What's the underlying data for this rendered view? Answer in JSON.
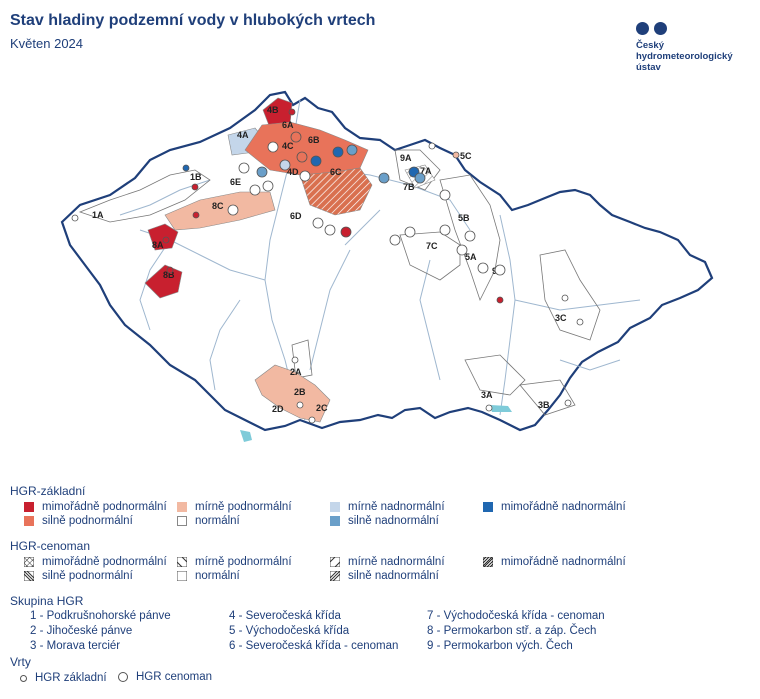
{
  "header": {
    "title": "Stav hladiny podzemní vody v hlubokých vrtech",
    "subtitle": "Květen 2024"
  },
  "logo": {
    "line1": "Český",
    "line2": "hydrometeorologický",
    "line3": "ústav"
  },
  "colors": {
    "border": "#1f3f7a",
    "river": "#9fb7cf",
    "lake": "#7ecbd9",
    "mimoradne_podnormalni": "#c8202f",
    "silne_podnormalni": "#e8735a",
    "mirne_podnormalni": "#f2b9a2",
    "normalni": "#ffffff",
    "mirne_nadnormalni": "#c4d6ea",
    "silne_nadnormalni": "#6a9fc9",
    "mimoradne_nadnormalni": "#2067b0"
  },
  "map": {
    "region_labels": [
      "1A",
      "1B",
      "2A",
      "2B",
      "2C",
      "2D",
      "3A",
      "3B",
      "3C",
      "4A",
      "4B",
      "4C",
      "4D",
      "5A",
      "5B",
      "5C",
      "6A",
      "6B",
      "6C",
      "6D",
      "6E",
      "7A",
      "7B",
      "7C",
      "8A",
      "8B",
      "8C",
      "9A",
      "9B"
    ]
  },
  "legend": {
    "zakladni_title": "HGR-základní",
    "zakladni": [
      {
        "label": "mimořádně podnormální",
        "color": "#c8202f"
      },
      {
        "label": "silně podnormální",
        "color": "#e8735a"
      },
      {
        "label": "mírně podnormální",
        "color": "#f2b9a2"
      },
      {
        "label": "normální",
        "color": "#ffffff"
      },
      {
        "label": "mírně nadnormální",
        "color": "#c4d6ea"
      },
      {
        "label": "silně nadnormální",
        "color": "#6a9fc9"
      },
      {
        "label": "mimořádně nadnormální",
        "color": "#2067b0"
      }
    ],
    "cenoman_title": "HGR-cenoman",
    "cenoman": [
      {
        "label": "mimořádně podnormální"
      },
      {
        "label": "silně podnormální"
      },
      {
        "label": "mírně podnormální"
      },
      {
        "label": "normální"
      },
      {
        "label": "mírně nadnormální"
      },
      {
        "label": "silně nadnormální"
      },
      {
        "label": "mimořádně nadnormální"
      }
    ],
    "skupina_title": "Skupina HGR",
    "skupiny": [
      "1 - Podkrušnohorské pánve",
      "2 - Jihočeské pánve",
      "3 - Morava terciér",
      "4 - Severočeská křída",
      "5 - Východočeská křída",
      "6 - Severočeská křída - cenoman",
      "7 - Východočeská křída - cenoman",
      "8 - Permokarbon stř. a záp. Čech",
      "9 - Permokarbon vých. Čech"
    ],
    "vrty_title": "Vrty",
    "vrty": [
      "HGR základní",
      "HGR cenoman"
    ]
  }
}
